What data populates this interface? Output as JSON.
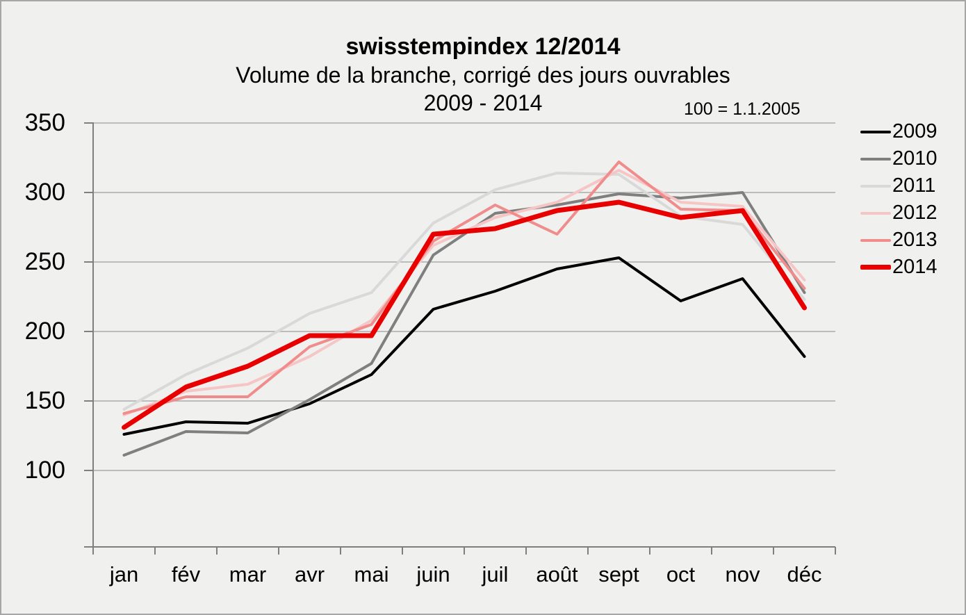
{
  "header": {
    "title": "swisstempindex 12/2014",
    "subtitle": "Volume de la branche, corrigé des jours ouvrables",
    "period": "2009 - 2014",
    "note": "100 = 1.1.2005"
  },
  "chart_data": {
    "type": "line",
    "title": "swisstempindex 12/2014",
    "subtitle": "Volume de la branche, corrigé des jours ouvrables",
    "period": "2009 - 2014",
    "note": "100 = 1.1.2005",
    "categories": [
      "jan",
      "fév",
      "mar",
      "avr",
      "mai",
      "juin",
      "juil",
      "août",
      "sept",
      "oct",
      "nov",
      "déc"
    ],
    "y_ticks": [
      100,
      150,
      200,
      250,
      300,
      350
    ],
    "ylim": [
      45,
      350
    ],
    "grid": true,
    "legend_position": "right",
    "series": [
      {
        "name": "2009",
        "color": "#000000",
        "width": 4,
        "values": [
          126,
          135,
          134,
          148,
          169,
          216,
          229,
          245,
          253,
          222,
          238,
          182
        ]
      },
      {
        "name": "2010",
        "color": "#7f7f7f",
        "width": 4,
        "values": [
          111,
          128,
          127,
          151,
          177,
          255,
          285,
          291,
          299,
          296,
          300,
          228
        ]
      },
      {
        "name": "2011",
        "color": "#d9d9d9",
        "width": 4,
        "values": [
          144,
          169,
          188,
          213,
          228,
          278,
          302,
          314,
          313,
          283,
          277,
          223
        ]
      },
      {
        "name": "2012",
        "color": "#f6c5c5",
        "width": 4,
        "values": [
          140,
          157,
          162,
          182,
          208,
          262,
          282,
          293,
          316,
          293,
          290,
          237
        ]
      },
      {
        "name": "2013",
        "color": "#f08c8c",
        "width": 4,
        "values": [
          141,
          153,
          153,
          189,
          205,
          265,
          291,
          270,
          322,
          288,
          287,
          231
        ]
      },
      {
        "name": "2014",
        "color": "#e80000",
        "width": 7,
        "values": [
          131,
          160,
          175,
          197,
          197,
          270,
          274,
          287,
          293,
          282,
          287,
          217
        ]
      }
    ],
    "axis_color": "#7f7f7f",
    "grid_color": "#ababab"
  }
}
